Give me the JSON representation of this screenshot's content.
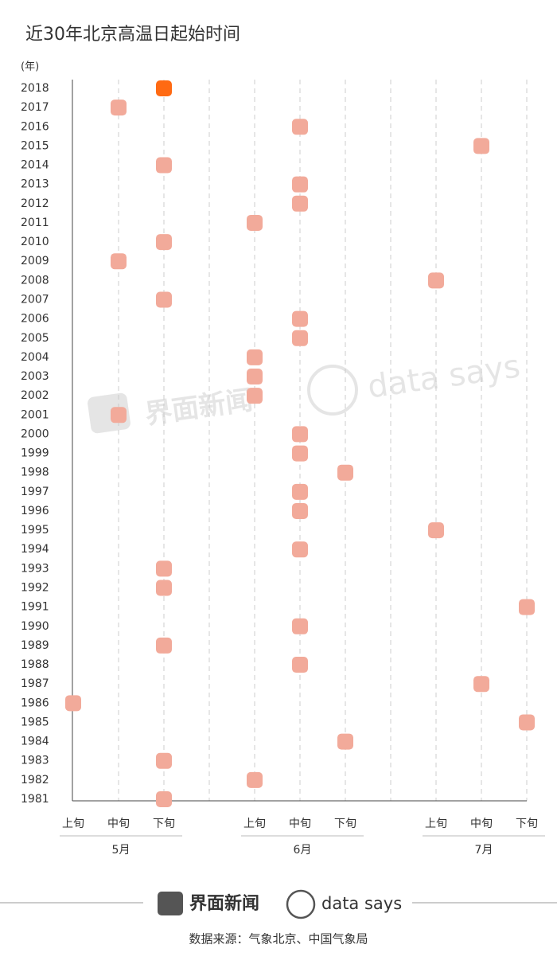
{
  "chart_data": {
    "type": "dot",
    "title": "近30年北京高温日起始时间",
    "y_unit": "(年)",
    "categories": [
      "2018",
      "2017",
      "2016",
      "2015",
      "2014",
      "2013",
      "2012",
      "2011",
      "2010",
      "2009",
      "2008",
      "2007",
      "2006",
      "2005",
      "2004",
      "2003",
      "2002",
      "2001",
      "2000",
      "1999",
      "1998",
      "1997",
      "1996",
      "1995",
      "1994",
      "1993",
      "1992",
      "1991",
      "1990",
      "1989",
      "1988",
      "1987",
      "1986",
      "1985",
      "1984",
      "1983",
      "1982",
      "1981"
    ],
    "x_categories": [
      "上旬",
      "中旬",
      "下旬",
      null,
      "上旬",
      "中旬",
      "下旬",
      null,
      "上旬",
      "中旬",
      "下旬"
    ],
    "groups": [
      "5月",
      "6月",
      "7月"
    ],
    "values": [
      2,
      1,
      5,
      9,
      2,
      5,
      5,
      4,
      2,
      1,
      8,
      2,
      5,
      5,
      4,
      4,
      4,
      1,
      5,
      5,
      6,
      5,
      5,
      8,
      5,
      2,
      2,
      10,
      5,
      2,
      5,
      9,
      0,
      10,
      6,
      2,
      4,
      2
    ],
    "colors": [
      "#ff6a13",
      "#f2aa9a",
      "#f2aa9a",
      "#f2aa9a",
      "#f2aa9a",
      "#f2aa9a",
      "#f2aa9a",
      "#f2aa9a",
      "#f2aa9a",
      "#f2aa9a",
      "#f2aa9a",
      "#f2aa9a",
      "#f2aa9a",
      "#f2aa9a",
      "#f2aa9a",
      "#f2aa9a",
      "#f2aa9a",
      "#f2aa9a",
      "#f2aa9a",
      "#f2aa9a",
      "#f2aa9a",
      "#f2aa9a",
      "#f2aa9a",
      "#f2aa9a",
      "#f2aa9a",
      "#f2aa9a",
      "#f2aa9a",
      "#f2aa9a",
      "#f2aa9a",
      "#f2aa9a",
      "#f2aa9a",
      "#f2aa9a",
      "#f2aa9a",
      "#f2aa9a",
      "#f2aa9a",
      "#f2aa9a",
      "#f2aa9a",
      "#f2aa9a"
    ],
    "grid": true
  },
  "watermark": [
    "界面新闻",
    "data says"
  ],
  "footer": {
    "brand": "界面新闻",
    "partner": "data says",
    "source": "数据来源：气象北京、中国气象局"
  }
}
